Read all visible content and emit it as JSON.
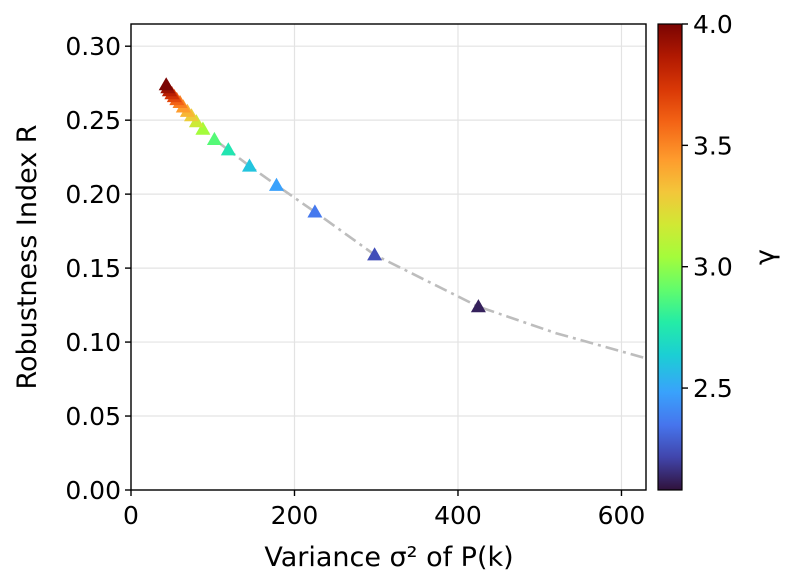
{
  "chart_data": {
    "type": "scatter",
    "xlabel": "Variance σ² of P(k)",
    "ylabel": "Robustness Index R",
    "colorbar_label": "γ",
    "xlim": [
      0,
      630
    ],
    "ylim": [
      0,
      0.315
    ],
    "xticks": [
      0,
      200,
      400,
      600
    ],
    "xtick_labels": [
      "0",
      "200",
      "400",
      "600"
    ],
    "yticks": [
      0,
      0.05,
      0.1,
      0.15,
      0.2,
      0.25,
      0.3
    ],
    "ytick_labels": [
      "0.00",
      "0.05",
      "0.10",
      "0.15",
      "0.20",
      "0.25",
      "0.30"
    ],
    "colorbar_range": [
      2.08,
      4.0
    ],
    "colorbar_ticks": [
      2.5,
      3.0,
      3.5,
      4.0
    ],
    "colorbar_tick_labels": [
      "2.5",
      "3.0",
      "3.5",
      "4.0"
    ],
    "grid": true,
    "marker": "triangle",
    "colormap": "turbo",
    "points": [
      {
        "x": 43,
        "y": 0.274,
        "gamma": 4.0
      },
      {
        "x": 45,
        "y": 0.272,
        "gamma": 3.92
      },
      {
        "x": 47,
        "y": 0.27,
        "gamma": 3.84
      },
      {
        "x": 50,
        "y": 0.268,
        "gamma": 3.76
      },
      {
        "x": 53,
        "y": 0.266,
        "gamma": 3.68
      },
      {
        "x": 56,
        "y": 0.264,
        "gamma": 3.6
      },
      {
        "x": 60,
        "y": 0.262,
        "gamma": 3.52
      },
      {
        "x": 64,
        "y": 0.259,
        "gamma": 3.44
      },
      {
        "x": 69,
        "y": 0.256,
        "gamma": 3.36
      },
      {
        "x": 74,
        "y": 0.253,
        "gamma": 3.28
      },
      {
        "x": 80,
        "y": 0.249,
        "gamma": 3.16
      },
      {
        "x": 88,
        "y": 0.244,
        "gamma": 3.04
      },
      {
        "x": 102,
        "y": 0.237,
        "gamma": 2.88
      },
      {
        "x": 119,
        "y": 0.23,
        "gamma": 2.74
      },
      {
        "x": 145,
        "y": 0.219,
        "gamma": 2.6
      },
      {
        "x": 178,
        "y": 0.206,
        "gamma": 2.48
      },
      {
        "x": 225,
        "y": 0.188,
        "gamma": 2.36
      },
      {
        "x": 298,
        "y": 0.159,
        "gamma": 2.24
      },
      {
        "x": 425,
        "y": 0.124,
        "gamma": 2.12
      }
    ],
    "fit_line": {
      "style": "dash-dot",
      "color": "#bdbdbd",
      "x": [
        43,
        60,
        80,
        102,
        145,
        178,
        225,
        298,
        425,
        520,
        630
      ],
      "y": [
        0.274,
        0.262,
        0.249,
        0.237,
        0.219,
        0.206,
        0.188,
        0.159,
        0.124,
        0.106,
        0.089
      ]
    }
  }
}
